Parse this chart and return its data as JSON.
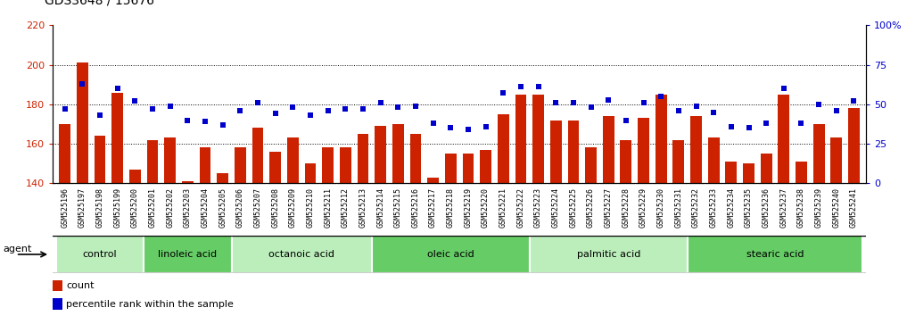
{
  "title": "GDS3648 / 15676",
  "samples": [
    "GSM525196",
    "GSM525197",
    "GSM525198",
    "GSM525199",
    "GSM525200",
    "GSM525201",
    "GSM525202",
    "GSM525203",
    "GSM525204",
    "GSM525205",
    "GSM525206",
    "GSM525207",
    "GSM525208",
    "GSM525209",
    "GSM525210",
    "GSM525211",
    "GSM525212",
    "GSM525213",
    "GSM525214",
    "GSM525215",
    "GSM525216",
    "GSM525217",
    "GSM525218",
    "GSM525219",
    "GSM525220",
    "GSM525221",
    "GSM525222",
    "GSM525223",
    "GSM525224",
    "GSM525225",
    "GSM525226",
    "GSM525227",
    "GSM525228",
    "GSM525229",
    "GSM525230",
    "GSM525231",
    "GSM525232",
    "GSM525233",
    "GSM525234",
    "GSM525235",
    "GSM525236",
    "GSM525237",
    "GSM525238",
    "GSM525239",
    "GSM525240",
    "GSM525241"
  ],
  "bar_values": [
    170,
    201,
    164,
    186,
    147,
    162,
    163,
    141,
    158,
    145,
    158,
    168,
    156,
    163,
    150,
    158,
    158,
    165,
    169,
    170,
    165,
    143,
    155,
    155,
    157,
    175,
    185,
    185,
    172,
    172,
    158,
    174,
    162,
    173,
    185,
    162,
    174,
    163,
    151,
    150,
    155,
    185,
    151,
    170,
    163,
    178
  ],
  "dot_values": [
    47,
    63,
    43,
    60,
    52,
    47,
    49,
    40,
    39,
    37,
    46,
    51,
    44,
    48,
    43,
    46,
    47,
    47,
    51,
    48,
    49,
    38,
    35,
    34,
    36,
    57,
    61,
    61,
    51,
    51,
    48,
    53,
    40,
    51,
    55,
    46,
    49,
    45,
    36,
    35,
    38,
    60,
    38,
    50,
    46,
    52
  ],
  "groups": [
    {
      "label": "control",
      "start": 0,
      "end": 5,
      "color": "#bbeebb"
    },
    {
      "label": "linoleic acid",
      "start": 5,
      "end": 10,
      "color": "#77dd77"
    },
    {
      "label": "octanoic acid",
      "start": 10,
      "end": 18,
      "color": "#bbeebb"
    },
    {
      "label": "oleic acid",
      "start": 18,
      "end": 27,
      "color": "#77dd77"
    },
    {
      "label": "palmitic acid",
      "start": 27,
      "end": 36,
      "color": "#bbeebb"
    },
    {
      "label": "stearic acid",
      "start": 36,
      "end": 46,
      "color": "#77dd77"
    }
  ],
  "bar_color": "#cc2200",
  "dot_color": "#0000cc",
  "ymin": 140,
  "ymax": 220,
  "yticks": [
    140,
    160,
    180,
    200,
    220
  ],
  "right_yticks": [
    0,
    25,
    50,
    75,
    100
  ],
  "right_ytick_labels": [
    "0",
    "25",
    "50",
    "75",
    "100%"
  ],
  "grid_values": [
    160,
    180,
    200
  ],
  "background_color": "#ffffff",
  "plot_bg_color": "#ffffff",
  "tick_bg_color": "#dddddd",
  "title_fontsize": 10,
  "tick_fontsize": 6,
  "group_label_fontsize": 8,
  "legend_fontsize": 8
}
